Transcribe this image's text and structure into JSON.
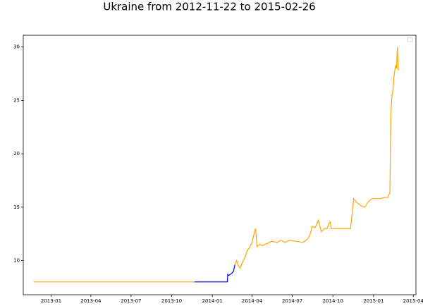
{
  "chart_data": {
    "type": "line",
    "title": "Ukraine from 2012-11-22 to 2015-02-26",
    "xlim": [
      "2012-10-30",
      "2015-04-07"
    ],
    "xticks": [
      {
        "value": "2013-01-01",
        "label": "2013-01"
      },
      {
        "value": "2013-04-01",
        "label": "2013-04"
      },
      {
        "value": "2013-07-01",
        "label": "2013-07"
      },
      {
        "value": "2013-10-01",
        "label": "2013-10"
      },
      {
        "value": "2014-01-01",
        "label": "2014-01"
      },
      {
        "value": "2014-04-01",
        "label": "2014-04"
      },
      {
        "value": "2014-07-01",
        "label": "2014-07"
      },
      {
        "value": "2014-10-01",
        "label": "2014-10"
      },
      {
        "value": "2015-01-01",
        "label": "2015-01"
      },
      {
        "value": "2015-04-01",
        "label": "2015-04"
      }
    ],
    "ylim": [
      6.8,
      31.1
    ],
    "yticks": [
      10,
      15,
      20,
      25,
      30
    ],
    "series": [
      {
        "color": "#ffa500",
        "x": [
          "2012-11-22",
          "2013-11-20",
          "2013-11-21",
          "2014-02-21",
          "2014-02-25",
          "2014-03-01",
          "2014-03-05",
          "2014-03-08",
          "2014-03-12",
          "2014-03-16",
          "2014-03-22",
          "2014-03-26",
          "2014-04-01",
          "2014-04-06",
          "2014-04-09",
          "2014-04-12",
          "2014-04-18",
          "2014-04-25",
          "2014-05-05",
          "2014-05-15",
          "2014-05-28",
          "2014-06-05",
          "2014-06-15",
          "2014-06-25",
          "2014-07-10",
          "2014-07-25",
          "2014-08-05",
          "2014-08-10",
          "2014-08-15",
          "2014-08-22",
          "2014-08-29",
          "2014-09-01",
          "2014-09-05",
          "2014-09-12",
          "2014-09-18",
          "2014-09-22",
          "2014-09-25",
          "2014-09-27",
          "2014-10-15",
          "2014-11-05",
          "2014-11-10",
          "2014-11-14",
          "2014-11-17",
          "2014-11-25",
          "2014-12-05",
          "2014-12-12",
          "2014-12-20",
          "2014-12-28",
          "2015-01-05",
          "2015-01-15",
          "2015-01-25",
          "2015-02-02",
          "2015-02-05",
          "2015-02-07",
          "2015-02-08",
          "2015-02-09",
          "2015-02-11",
          "2015-02-12",
          "2015-02-14",
          "2015-02-17",
          "2015-02-20",
          "2015-02-22",
          "2015-02-24",
          "2015-02-26"
        ],
        "values": [
          8.0,
          8.0,
          null,
          9.6,
          10.0,
          9.5,
          9.3,
          9.6,
          10.0,
          10.3,
          11.0,
          11.2,
          11.7,
          12.6,
          13.0,
          11.3,
          11.5,
          11.4,
          11.6,
          11.8,
          11.7,
          11.9,
          11.7,
          11.9,
          11.8,
          11.7,
          12.0,
          12.4,
          13.2,
          13.1,
          13.8,
          13.3,
          12.7,
          13.0,
          13.0,
          13.5,
          13.6,
          13.0,
          13.0,
          13.0,
          13.0,
          14.5,
          15.8,
          15.4,
          15.1,
          15.0,
          15.5,
          15.8,
          15.8,
          15.8,
          15.9,
          15.9,
          16.2,
          16.3,
          20.0,
          23.5,
          25.0,
          25.5,
          26.0,
          27.5,
          28.3,
          28.0,
          30.0,
          27.8
        ]
      },
      {
        "color": "#0000ff",
        "x": [
          "2013-11-21",
          "2014-02-04",
          "2014-02-05",
          "2014-02-07",
          "2014-02-14",
          "2014-02-18",
          "2014-02-21"
        ],
        "values": [
          8.0,
          8.0,
          8.7,
          8.6,
          8.8,
          9.0,
          9.6
        ]
      }
    ]
  }
}
